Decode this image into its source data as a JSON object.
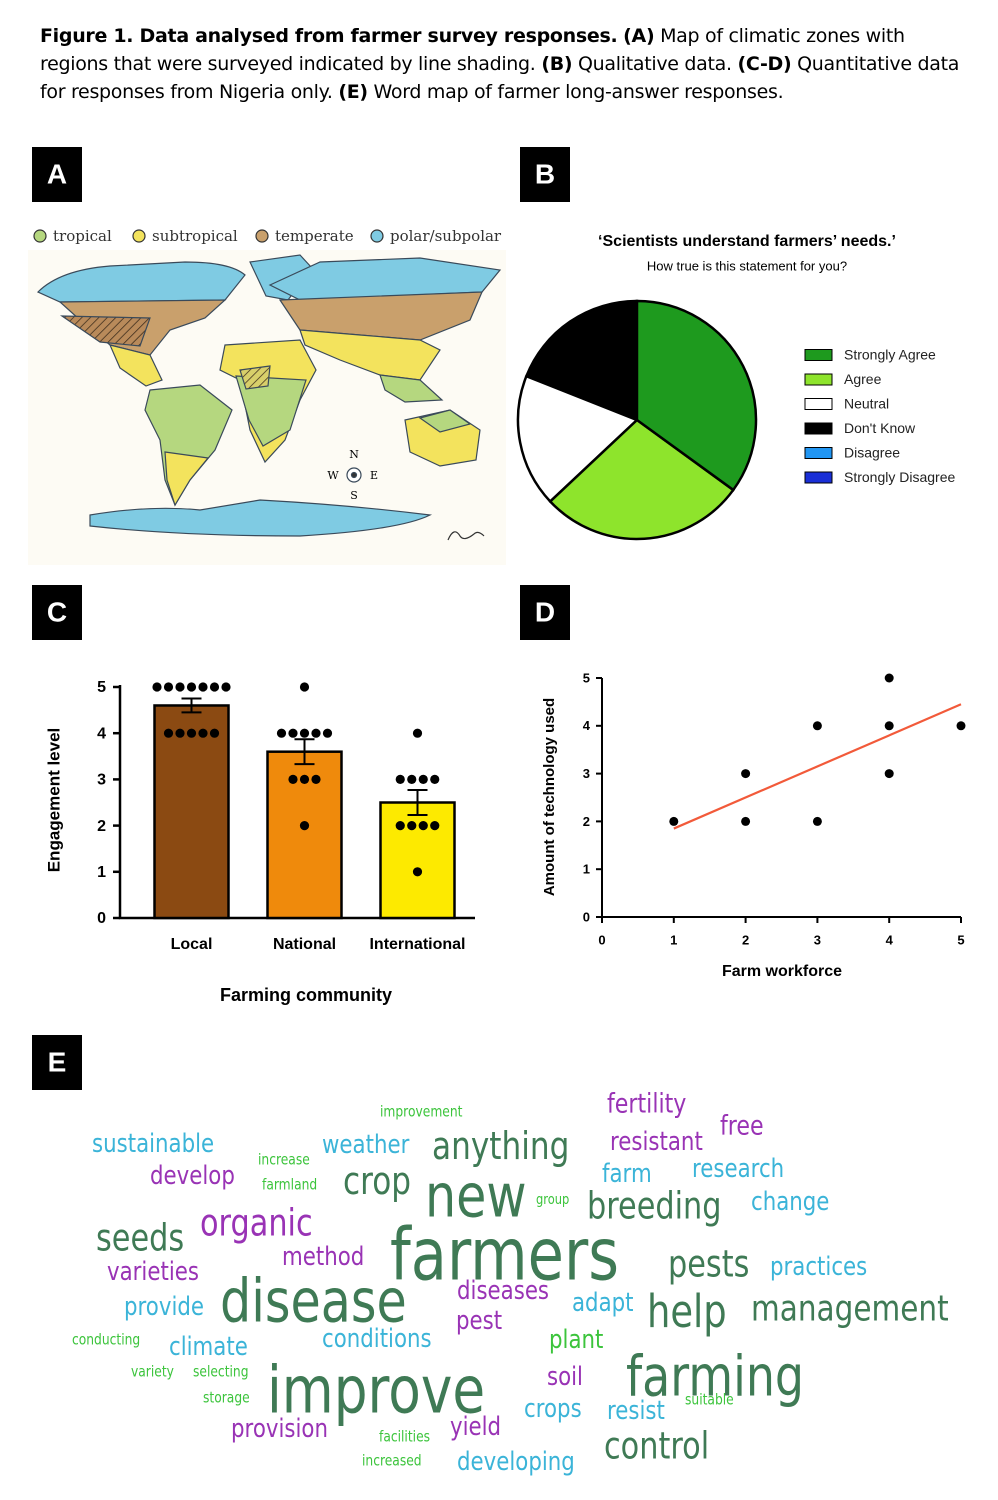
{
  "caption": [
    {
      "text": "Figure 1. Data analysed from farmer survey responses.",
      "bold": true
    },
    {
      "text": "(A)",
      "bold": true
    },
    {
      "text": "Map of climatic zones with regions that were surveyed indicated by line shading.",
      "bold": false
    },
    {
      "text": "(B)",
      "bold": true
    },
    {
      "text": "Qualitative data.",
      "bold": false
    },
    {
      "text": "(C-D)",
      "bold": true
    },
    {
      "text": "Quantitative data for responses from Nigeria only.",
      "bold": false
    },
    {
      "text": "(E)",
      "bold": true
    },
    {
      "text": "Word map of farmer long-answer responses.",
      "bold": false
    }
  ],
  "panel_labels": [
    "A",
    "B",
    "C",
    "D",
    "E"
  ],
  "map": {
    "legend": [
      {
        "name": "tropical",
        "color": "#b5d77f"
      },
      {
        "name": "subtropical",
        "color": "#f3e35d"
      },
      {
        "name": "temperate",
        "color": "#c9a06c"
      },
      {
        "name": "polar/subpolar",
        "color": "#7fcbe3"
      }
    ],
    "compass": [
      "N",
      "W",
      "E",
      "S"
    ]
  },
  "chart_data": [
    {
      "type": "pie",
      "title": "‘Scientists understand farmers’ needs.’",
      "subtitle": "How true is this statement for you?",
      "categories": [
        "Strongly Agree",
        "Agree",
        "Neutral",
        "Don't Know",
        "Disagree",
        "Strongly Disagree"
      ],
      "values": [
        35,
        28,
        18,
        19,
        0,
        0
      ],
      "colors": [
        "#1e9a1e",
        "#8ee42c",
        "#ffffff",
        "#000000",
        "#2196f3",
        "#1a2fd6"
      ]
    },
    {
      "type": "bar",
      "xlabel": "Farming community",
      "ylabel": "Engagement level",
      "categories": [
        "Local",
        "National",
        "International"
      ],
      "values": [
        4.6,
        3.6,
        2.5
      ],
      "errors": [
        0.15,
        0.27,
        0.27
      ],
      "colors": [
        "#8b4a12",
        "#ef8a0c",
        "#fdea00"
      ],
      "points": [
        [
          5,
          5,
          5,
          5,
          5,
          5,
          5,
          4,
          4,
          4,
          4,
          4
        ],
        [
          5,
          4,
          4,
          4,
          4,
          4,
          3,
          3,
          3,
          2
        ],
        [
          4,
          3,
          3,
          3,
          3,
          2,
          2,
          2,
          2,
          1
        ]
      ],
      "ylim": [
        0,
        5
      ],
      "yticks": [
        0,
        1,
        2,
        3,
        4,
        5
      ]
    },
    {
      "type": "scatter",
      "xlabel": "Farm workforce",
      "ylabel": "Amount of technology used",
      "x": [
        1,
        2,
        2,
        3,
        3,
        4,
        4,
        4,
        5
      ],
      "values": [
        2,
        3,
        2,
        4,
        2,
        5,
        4,
        3,
        4
      ],
      "color": "#000000",
      "trend": {
        "x": [
          1,
          5
        ],
        "values": [
          1.85,
          4.45
        ],
        "color": "#f25a3a"
      },
      "xlim": [
        0,
        5
      ],
      "ylim": [
        0,
        5
      ],
      "xticks": [
        0,
        1,
        2,
        3,
        4,
        5
      ],
      "yticks": [
        0,
        1,
        2,
        3,
        4,
        5
      ]
    }
  ],
  "word_cloud": {
    "words": [
      {
        "text": "improvement",
        "color": "#3cc43c"
      },
      {
        "text": "fertility",
        "color": "#9933b5"
      },
      {
        "text": "free",
        "color": "#9933b5"
      },
      {
        "text": "sustainable",
        "color": "#3bb4d8"
      },
      {
        "text": "weather",
        "color": "#3bb4d8"
      },
      {
        "text": "anything",
        "color": "#3f7a55"
      },
      {
        "text": "resistant",
        "color": "#9933b5"
      },
      {
        "text": "increase",
        "color": "#3cc43c"
      },
      {
        "text": "develop",
        "color": "#9933b5"
      },
      {
        "text": "farmland",
        "color": "#3cc43c"
      },
      {
        "text": "crop",
        "color": "#3f7a55"
      },
      {
        "text": "new",
        "color": "#3f7a55"
      },
      {
        "text": "farm",
        "color": "#3bb4d8"
      },
      {
        "text": "research",
        "color": "#3bb4d8"
      },
      {
        "text": "group",
        "color": "#3cc43c"
      },
      {
        "text": "breeding",
        "color": "#3f7a55"
      },
      {
        "text": "change",
        "color": "#3bb4d8"
      },
      {
        "text": "seeds",
        "color": "#3f7a55"
      },
      {
        "text": "organic",
        "color": "#9933b5"
      },
      {
        "text": "farmers",
        "color": "#3f7a55"
      },
      {
        "text": "method",
        "color": "#9933b5"
      },
      {
        "text": "pests",
        "color": "#3f7a55"
      },
      {
        "text": "practices",
        "color": "#3bb4d8"
      },
      {
        "text": "varieties",
        "color": "#9933b5"
      },
      {
        "text": "disease",
        "color": "#3f7a55"
      },
      {
        "text": "diseases",
        "color": "#9933b5"
      },
      {
        "text": "adapt",
        "color": "#3bb4d8"
      },
      {
        "text": "help",
        "color": "#3f7a55"
      },
      {
        "text": "management",
        "color": "#3f7a55"
      },
      {
        "text": "provide",
        "color": "#3bb4d8"
      },
      {
        "text": "pest",
        "color": "#9933b5"
      },
      {
        "text": "conditions",
        "color": "#3bb4d8"
      },
      {
        "text": "conducting",
        "color": "#3cc43c"
      },
      {
        "text": "climate",
        "color": "#3bb4d8"
      },
      {
        "text": "plant",
        "color": "#3cc43c"
      },
      {
        "text": "improve",
        "color": "#3f7a55"
      },
      {
        "text": "farming",
        "color": "#3f7a55"
      },
      {
        "text": "variety",
        "color": "#3cc43c"
      },
      {
        "text": "selecting",
        "color": "#3cc43c"
      },
      {
        "text": "soil",
        "color": "#9933b5"
      },
      {
        "text": "storage",
        "color": "#3cc43c"
      },
      {
        "text": "crops",
        "color": "#3bb4d8"
      },
      {
        "text": "resist",
        "color": "#3bb4d8"
      },
      {
        "text": "suitable",
        "color": "#3cc43c"
      },
      {
        "text": "provision",
        "color": "#9933b5"
      },
      {
        "text": "yield",
        "color": "#9933b5"
      },
      {
        "text": "control",
        "color": "#3f7a55"
      },
      {
        "text": "facilities",
        "color": "#3cc43c"
      },
      {
        "text": "increased",
        "color": "#3cc43c"
      },
      {
        "text": "developing",
        "color": "#3bb4d8"
      }
    ]
  }
}
